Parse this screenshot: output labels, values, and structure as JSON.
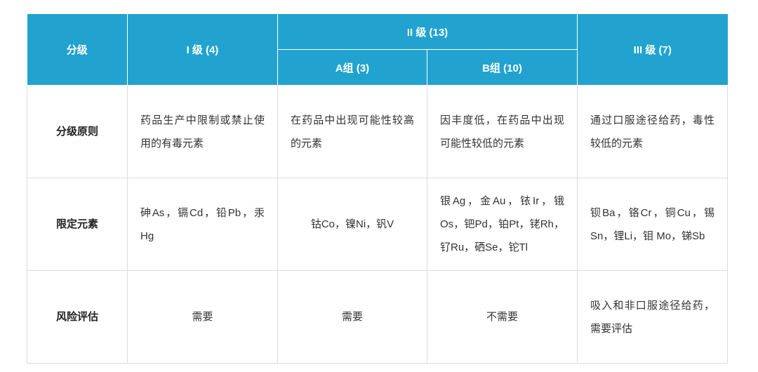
{
  "table": {
    "header": {
      "row1": [
        "分级",
        "I 级 (4)",
        "II 级 (13)",
        "III 级 (7)"
      ],
      "row2": [
        "A组 (3)",
        "B组 (10)"
      ]
    },
    "rows": [
      {
        "label": "分级原则",
        "cells": [
          "药品生产中限制或禁止使用的有毒元素",
          "在药品中出现可能性较高的元素",
          "因丰度低，在药品中出现可能性较低的元素",
          "通过口服途径给药，毒性较低的元素"
        ]
      },
      {
        "label": "限定元素",
        "cells": [
          "砷As，镉Cd，铅Pb，汞Hg",
          "钴Co，镍Ni，钒V",
          "银Ag，金Au，铱Ir，锇Os，钯Pd，铂Pt，铑Rh，钌Ru，硒Se，铊Tl",
          "钡Ba，铬Cr，铜Cu，锡Sn，锂Li，钼 Mo，锑Sb"
        ]
      },
      {
        "label": "风险评估",
        "cells": [
          "需要",
          "需要",
          "不需要",
          "吸入和非口服途径给药，需要评估"
        ]
      }
    ]
  }
}
